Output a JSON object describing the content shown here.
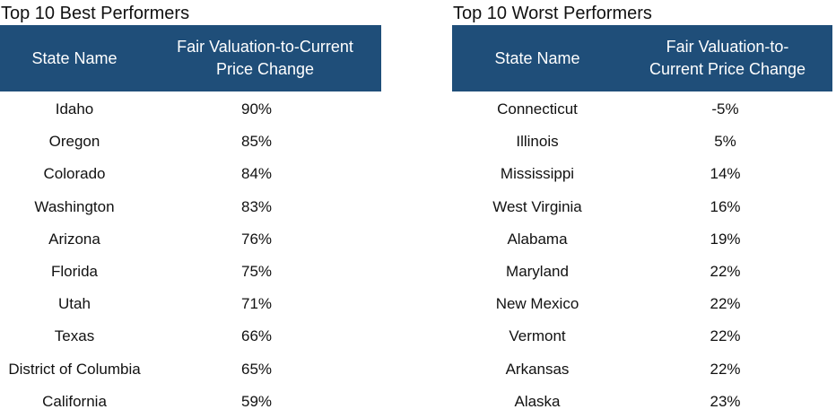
{
  "best": {
    "title": "Top 10 Best Performers",
    "header_state": "State Name",
    "header_change_line1": "Fair Valuation-to-Current",
    "header_change_line2": "Price Change",
    "rows": [
      {
        "state": "Idaho",
        "change": "90%"
      },
      {
        "state": "Oregon",
        "change": "85%"
      },
      {
        "state": "Colorado",
        "change": "84%"
      },
      {
        "state": "Washington",
        "change": "83%"
      },
      {
        "state": "Arizona",
        "change": "76%"
      },
      {
        "state": "Florida",
        "change": "75%"
      },
      {
        "state": "Utah",
        "change": "71%"
      },
      {
        "state": "Texas",
        "change": "66%"
      },
      {
        "state": "District of Columbia",
        "change": "65%"
      },
      {
        "state": "California",
        "change": "59%"
      }
    ]
  },
  "worst": {
    "title": "Top 10 Worst Performers",
    "header_state": "State Name",
    "header_change_line1": "Fair Valuation-to-",
    "header_change_line2": "Current Price Change",
    "rows": [
      {
        "state": "Connecticut",
        "change": "-5%"
      },
      {
        "state": "Illinois",
        "change": "5%"
      },
      {
        "state": "Mississippi",
        "change": "14%"
      },
      {
        "state": "West Virginia",
        "change": "16%"
      },
      {
        "state": "Alabama",
        "change": "19%"
      },
      {
        "state": "Maryland",
        "change": "22%"
      },
      {
        "state": "New Mexico",
        "change": "22%"
      },
      {
        "state": "Vermont",
        "change": "22%"
      },
      {
        "state": "Arkansas",
        "change": "22%"
      },
      {
        "state": "Alaska",
        "change": "23%"
      }
    ]
  },
  "colors": {
    "header_background": "#1f4e79",
    "header_text": "#ffffff"
  }
}
